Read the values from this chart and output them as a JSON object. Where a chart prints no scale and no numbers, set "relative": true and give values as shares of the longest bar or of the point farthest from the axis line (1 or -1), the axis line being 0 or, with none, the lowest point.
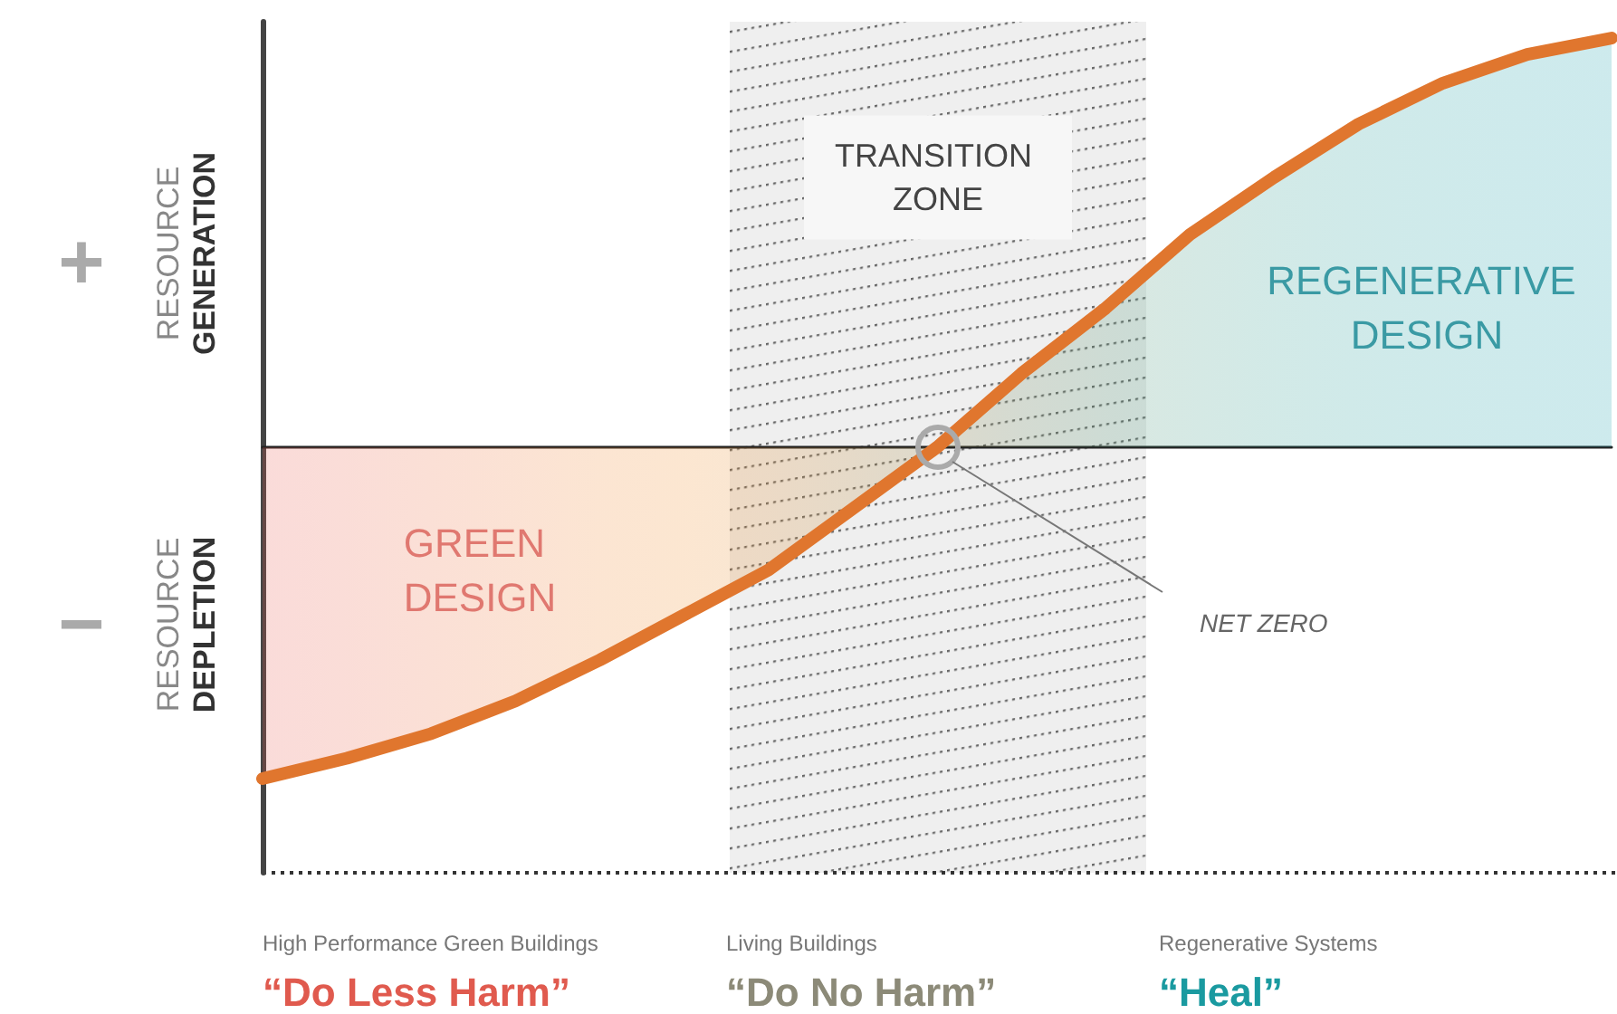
{
  "chart_data": {
    "type": "area",
    "relative": true,
    "categories": [
      null,
      null,
      null,
      null,
      null,
      null,
      null,
      null,
      null,
      null,
      null,
      null,
      null,
      null,
      null,
      null,
      null
    ],
    "series": [
      {
        "color": "#e0762e",
        "values": [
          -0.81,
          -0.76,
          -0.7,
          -0.62,
          -0.52,
          -0.41,
          -0.3,
          -0.15,
          0,
          0.18,
          0.34,
          0.52,
          0.66,
          0.79,
          0.89,
          0.96,
          1
        ],
        "colors": [
          "#e8564c",
          "#ea5e45",
          "#ec6a3c",
          "#ee7733",
          "#f0842a",
          "#f08a24",
          "#e08a2a",
          "#c08a36",
          "#9a8a48",
          "#6f8d62",
          "#4f9270",
          "#3a9680",
          "#2a9a8e",
          "#1f9b98",
          "#1a9ca0",
          "#169ca6",
          "#139ca9"
        ]
      }
    ],
    "annotations": [
      "+",
      "RESOURCE",
      "GENERATION",
      "−",
      "RESOURCE",
      "DEPLETION",
      "GREEN DESIGN",
      "REGENERATIVE DESIGN",
      "NET ZERO",
      "TRANSITION ZONE",
      "High Performance Green Buildings",
      "“Do Less Harm”",
      "Living Buildings",
      "“Do No Harm”",
      "Regenerative Systems",
      "“Heal”"
    ]
  }
}
